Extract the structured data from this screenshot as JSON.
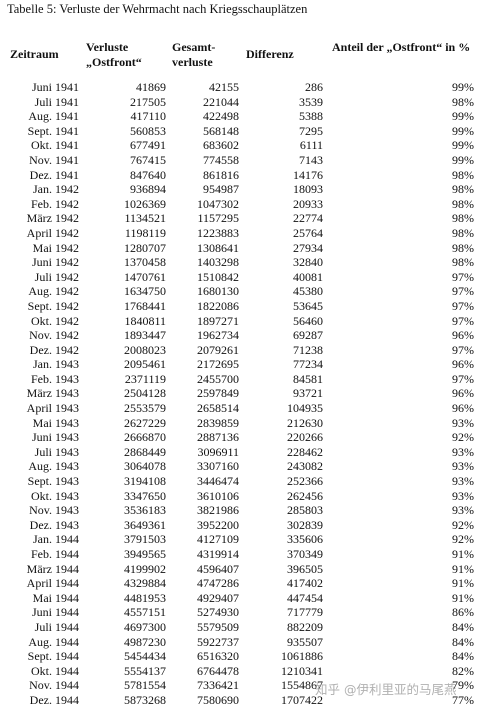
{
  "caption": "Tabelle 5: Verluste der Wehrmacht nach Kriegsschauplätzen",
  "headers": {
    "zeitraum": "Zeitraum",
    "verluste_ostfront": "Verluste „Ostfront“",
    "gesamtverluste": "Gesamt-verluste",
    "differenz": "Differenz",
    "anteil": "Anteil der „Ostfront“ in %"
  },
  "rows": [
    {
      "period": "Juni 1941",
      "ostfront": "41869",
      "gesamt": "42155",
      "differenz": "286",
      "anteil": "99%"
    },
    {
      "period": "Juli 1941",
      "ostfront": "217505",
      "gesamt": "221044",
      "differenz": "3539",
      "anteil": "98%"
    },
    {
      "period": "Aug. 1941",
      "ostfront": "417110",
      "gesamt": "422498",
      "differenz": "5388",
      "anteil": "99%"
    },
    {
      "period": "Sept. 1941",
      "ostfront": "560853",
      "gesamt": "568148",
      "differenz": "7295",
      "anteil": "99%"
    },
    {
      "period": "Okt. 1941",
      "ostfront": "677491",
      "gesamt": "683602",
      "differenz": "6111",
      "anteil": "99%"
    },
    {
      "period": "Nov. 1941",
      "ostfront": "767415",
      "gesamt": "774558",
      "differenz": "7143",
      "anteil": "99%"
    },
    {
      "period": "Dez. 1941",
      "ostfront": "847640",
      "gesamt": "861816",
      "differenz": "14176",
      "anteil": "98%"
    },
    {
      "period": "Jan. 1942",
      "ostfront": "936894",
      "gesamt": "954987",
      "differenz": "18093",
      "anteil": "98%"
    },
    {
      "period": "Feb. 1942",
      "ostfront": "1026369",
      "gesamt": "1047302",
      "differenz": "20933",
      "anteil": "98%"
    },
    {
      "period": "März 1942",
      "ostfront": "1134521",
      "gesamt": "1157295",
      "differenz": "22774",
      "anteil": "98%"
    },
    {
      "period": "April 1942",
      "ostfront": "1198119",
      "gesamt": "1223883",
      "differenz": "25764",
      "anteil": "98%"
    },
    {
      "period": "Mai 1942",
      "ostfront": "1280707",
      "gesamt": "1308641",
      "differenz": "27934",
      "anteil": "98%"
    },
    {
      "period": "Juni 1942",
      "ostfront": "1370458",
      "gesamt": "1403298",
      "differenz": "32840",
      "anteil": "98%"
    },
    {
      "period": "Juli 1942",
      "ostfront": "1470761",
      "gesamt": "1510842",
      "differenz": "40081",
      "anteil": "97%"
    },
    {
      "period": "Aug. 1942",
      "ostfront": "1634750",
      "gesamt": "1680130",
      "differenz": "45380",
      "anteil": "97%"
    },
    {
      "period": "Sept. 1942",
      "ostfront": "1768441",
      "gesamt": "1822086",
      "differenz": "53645",
      "anteil": "97%"
    },
    {
      "period": "Okt. 1942",
      "ostfront": "1840811",
      "gesamt": "1897271",
      "differenz": "56460",
      "anteil": "97%"
    },
    {
      "period": "Nov. 1942",
      "ostfront": "1893447",
      "gesamt": "1962734",
      "differenz": "69287",
      "anteil": "96%"
    },
    {
      "period": "Dez. 1942",
      "ostfront": "2008023",
      "gesamt": "2079261",
      "differenz": "71238",
      "anteil": "97%"
    },
    {
      "period": "Jan. 1943",
      "ostfront": "2095461",
      "gesamt": "2172695",
      "differenz": "77234",
      "anteil": "96%"
    },
    {
      "period": "Feb. 1943",
      "ostfront": "2371119",
      "gesamt": "2455700",
      "differenz": "84581",
      "anteil": "97%"
    },
    {
      "period": "März 1943",
      "ostfront": "2504128",
      "gesamt": "2597849",
      "differenz": "93721",
      "anteil": "96%"
    },
    {
      "period": "April 1943",
      "ostfront": "2553579",
      "gesamt": "2658514",
      "differenz": "104935",
      "anteil": "96%"
    },
    {
      "period": "Mai 1943",
      "ostfront": "2627229",
      "gesamt": "2839859",
      "differenz": "212630",
      "anteil": "93%"
    },
    {
      "period": "Juni 1943",
      "ostfront": "2666870",
      "gesamt": "2887136",
      "differenz": "220266",
      "anteil": "92%"
    },
    {
      "period": "Juli 1943",
      "ostfront": "2868449",
      "gesamt": "3096911",
      "differenz": "228462",
      "anteil": "93%"
    },
    {
      "period": "Aug. 1943",
      "ostfront": "3064078",
      "gesamt": "3307160",
      "differenz": "243082",
      "anteil": "93%"
    },
    {
      "period": "Sept. 1943",
      "ostfront": "3194108",
      "gesamt": "3446474",
      "differenz": "252366",
      "anteil": "93%"
    },
    {
      "period": "Okt. 1943",
      "ostfront": "3347650",
      "gesamt": "3610106",
      "differenz": "262456",
      "anteil": "93%"
    },
    {
      "period": "Nov. 1943",
      "ostfront": "3536183",
      "gesamt": "3821986",
      "differenz": "285803",
      "anteil": "93%"
    },
    {
      "period": "Dez. 1943",
      "ostfront": "3649361",
      "gesamt": "3952200",
      "differenz": "302839",
      "anteil": "92%"
    },
    {
      "period": "Jan. 1944",
      "ostfront": "3791503",
      "gesamt": "4127109",
      "differenz": "335606",
      "anteil": "92%"
    },
    {
      "period": "Feb. 1944",
      "ostfront": "3949565",
      "gesamt": "4319914",
      "differenz": "370349",
      "anteil": "91%"
    },
    {
      "period": "März 1944",
      "ostfront": "4199902",
      "gesamt": "4596407",
      "differenz": "396505",
      "anteil": "91%"
    },
    {
      "period": "April 1944",
      "ostfront": "4329884",
      "gesamt": "4747286",
      "differenz": "417402",
      "anteil": "91%"
    },
    {
      "period": "Mai 1944",
      "ostfront": "4481953",
      "gesamt": "4929407",
      "differenz": "447454",
      "anteil": "91%"
    },
    {
      "period": "Juni 1944",
      "ostfront": "4557151",
      "gesamt": "5274930",
      "differenz": "717779",
      "anteil": "86%"
    },
    {
      "period": "Juli 1944",
      "ostfront": "4697300",
      "gesamt": "5579509",
      "differenz": "882209",
      "anteil": "84%"
    },
    {
      "period": "Aug. 1944",
      "ostfront": "4987230",
      "gesamt": "5922737",
      "differenz": "935507",
      "anteil": "84%"
    },
    {
      "period": "Sept. 1944",
      "ostfront": "5454434",
      "gesamt": "6516320",
      "differenz": "1061886",
      "anteil": "84%"
    },
    {
      "period": "Okt. 1944",
      "ostfront": "5554137",
      "gesamt": "6764478",
      "differenz": "1210341",
      "anteil": "82%"
    },
    {
      "period": "Nov. 1944",
      "ostfront": "5781554",
      "gesamt": "7336421",
      "differenz": "1554867",
      "anteil": "79%"
    },
    {
      "period": "Dez. 1944",
      "ostfront": "5873268",
      "gesamt": "7580690",
      "differenz": "1707422",
      "anteil": "77%"
    }
  ],
  "watermark": "知乎 @伊利里亚的马尾燕"
}
